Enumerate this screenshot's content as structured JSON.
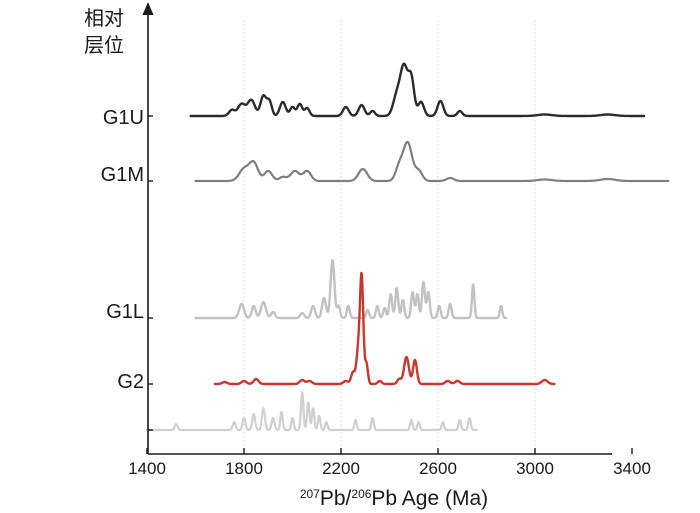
{
  "chart_data": {
    "type": "line",
    "ytitle_lines": [
      "相对",
      "层位"
    ],
    "xlabel_parts": [
      {
        "t": "207",
        "sup": true
      },
      {
        "t": "Pb/",
        "sup": false
      },
      {
        "t": "206",
        "sup": true
      },
      {
        "t": "Pb Age (Ma)",
        "sup": false
      }
    ],
    "xlim": [
      1400,
      3550
    ],
    "xticks": [
      1400,
      1800,
      2200,
      2600,
      3000,
      3400
    ],
    "xtick_labels": [
      "1400",
      "1800",
      "2200",
      "2600",
      "3000",
      "3400"
    ],
    "grid": "vertical dashed at 1800, 2200, 2600, 3000",
    "series": [
      {
        "name": "G1U",
        "color": "#2b2b2b",
        "width": 2.4,
        "x_range": [
          1580,
          3450
        ],
        "baseline": 0,
        "peaks": [
          [
            1750,
            6,
            12
          ],
          [
            1790,
            12,
            15
          ],
          [
            1830,
            16,
            15
          ],
          [
            1880,
            20,
            12
          ],
          [
            1905,
            14,
            10
          ],
          [
            1960,
            14,
            12
          ],
          [
            2000,
            9,
            10
          ],
          [
            2030,
            12,
            10
          ],
          [
            2060,
            8,
            10
          ],
          [
            2220,
            9,
            12
          ],
          [
            2285,
            11,
            12
          ],
          [
            2330,
            5,
            10
          ],
          [
            2430,
            20,
            15
          ],
          [
            2460,
            48,
            15
          ],
          [
            2490,
            36,
            12
          ],
          [
            2530,
            14,
            12
          ],
          [
            2610,
            15,
            12
          ],
          [
            2690,
            5,
            10
          ],
          [
            3040,
            1.5,
            30
          ],
          [
            3300,
            1.5,
            30
          ]
        ]
      },
      {
        "name": "G1M",
        "color": "#7f7f7f",
        "width": 2.2,
        "x_range": [
          1600,
          3550
        ],
        "baseline": 0,
        "peaks": [
          [
            1800,
            12,
            20
          ],
          [
            1840,
            18,
            18
          ],
          [
            1900,
            10,
            16
          ],
          [
            1960,
            4,
            15
          ],
          [
            2010,
            10,
            18
          ],
          [
            2060,
            10,
            16
          ],
          [
            2290,
            12,
            18
          ],
          [
            2440,
            14,
            15
          ],
          [
            2475,
            38,
            18
          ],
          [
            2520,
            10,
            15
          ],
          [
            2650,
            3,
            15
          ],
          [
            3040,
            1.5,
            30
          ],
          [
            3300,
            2,
            30
          ]
        ]
      },
      {
        "name": "G1L",
        "color": "#c3c1c2",
        "width": 2.4,
        "x_range": [
          1600,
          2880
        ],
        "baseline": 0,
        "peaks": [
          [
            1790,
            14,
            10
          ],
          [
            1840,
            12,
            8
          ],
          [
            1880,
            16,
            10
          ],
          [
            1920,
            6,
            8
          ],
          [
            2040,
            5,
            8
          ],
          [
            2085,
            12,
            8
          ],
          [
            2130,
            20,
            8
          ],
          [
            2165,
            58,
            8
          ],
          [
            2190,
            12,
            6
          ],
          [
            2230,
            12,
            6
          ],
          [
            2310,
            8,
            6
          ],
          [
            2350,
            12,
            6
          ],
          [
            2380,
            10,
            6
          ],
          [
            2405,
            24,
            6
          ],
          [
            2430,
            30,
            6
          ],
          [
            2455,
            18,
            6
          ],
          [
            2495,
            26,
            6
          ],
          [
            2515,
            24,
            6
          ],
          [
            2540,
            36,
            6
          ],
          [
            2560,
            26,
            6
          ],
          [
            2605,
            12,
            6
          ],
          [
            2650,
            14,
            6
          ],
          [
            2745,
            34,
            5
          ],
          [
            2860,
            12,
            5
          ]
        ]
      },
      {
        "name": "G2",
        "color": "#c8372d",
        "width": 2.4,
        "x_range": [
          1680,
          3080
        ],
        "baseline": 0,
        "peaks": [
          [
            1720,
            2,
            10
          ],
          [
            1800,
            3,
            10
          ],
          [
            1850,
            5,
            10
          ],
          [
            2040,
            4,
            10
          ],
          [
            2070,
            3,
            10
          ],
          [
            2220,
            3,
            10
          ],
          [
            2250,
            12,
            8
          ],
          [
            2270,
            30,
            7
          ],
          [
            2285,
            108,
            7
          ],
          [
            2305,
            20,
            6
          ],
          [
            2360,
            3,
            8
          ],
          [
            2440,
            5,
            8
          ],
          [
            2470,
            27,
            10
          ],
          [
            2505,
            24,
            8
          ],
          [
            2640,
            3,
            10
          ],
          [
            2680,
            3,
            10
          ],
          [
            3040,
            4,
            12
          ]
        ]
      },
      {
        "name": "",
        "color": "#d1cfd0",
        "width": 2.2,
        "x_range": [
          1400,
          2760
        ],
        "baseline": 0,
        "peaks": [
          [
            1520,
            6,
            6
          ],
          [
            1760,
            8,
            6
          ],
          [
            1800,
            12,
            6
          ],
          [
            1840,
            16,
            6
          ],
          [
            1880,
            22,
            6
          ],
          [
            1920,
            12,
            6
          ],
          [
            1955,
            18,
            5
          ],
          [
            2000,
            12,
            5
          ],
          [
            2040,
            38,
            5
          ],
          [
            2065,
            28,
            5
          ],
          [
            2085,
            22,
            5
          ],
          [
            2110,
            14,
            5
          ],
          [
            2140,
            8,
            5
          ],
          [
            2260,
            10,
            5
          ],
          [
            2330,
            12,
            5
          ],
          [
            2490,
            10,
            5
          ],
          [
            2520,
            8,
            5
          ],
          [
            2620,
            8,
            5
          ],
          [
            2690,
            10,
            5
          ],
          [
            2730,
            12,
            5
          ]
        ]
      }
    ],
    "row_labels": [
      "G1U",
      "G1M",
      "G1L",
      "G2"
    ]
  }
}
